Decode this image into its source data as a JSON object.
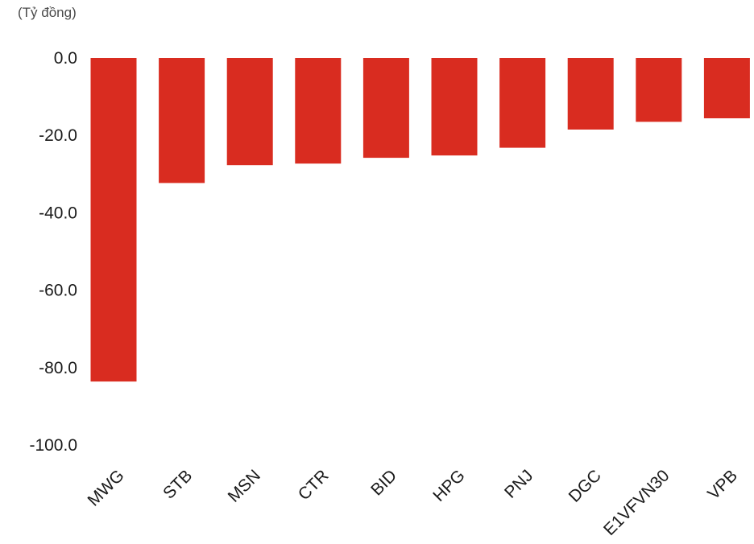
{
  "chart_data": {
    "type": "bar",
    "unit_label": "(Tỷ đồng)",
    "categories": [
      "MWG",
      "STB",
      "MSN",
      "CTR",
      "BID",
      "HPG",
      "PNJ",
      "DGC",
      "E1VFVN30",
      "VPB"
    ],
    "values": [
      -83.6,
      -32.3,
      -27.7,
      -27.3,
      -25.8,
      -25.2,
      -23.2,
      -18.5,
      -16.5,
      -15.6
    ],
    "ylim": [
      -100,
      0
    ],
    "yticks": [
      0,
      -20,
      -40,
      -60,
      -80,
      -100
    ],
    "ytick_labels": [
      "0.0",
      "-20.0",
      "-40.0",
      "-60.0",
      "-80.0",
      "-100.0"
    ],
    "bar_color": "#d92c20",
    "grid": false,
    "legend": "none"
  }
}
